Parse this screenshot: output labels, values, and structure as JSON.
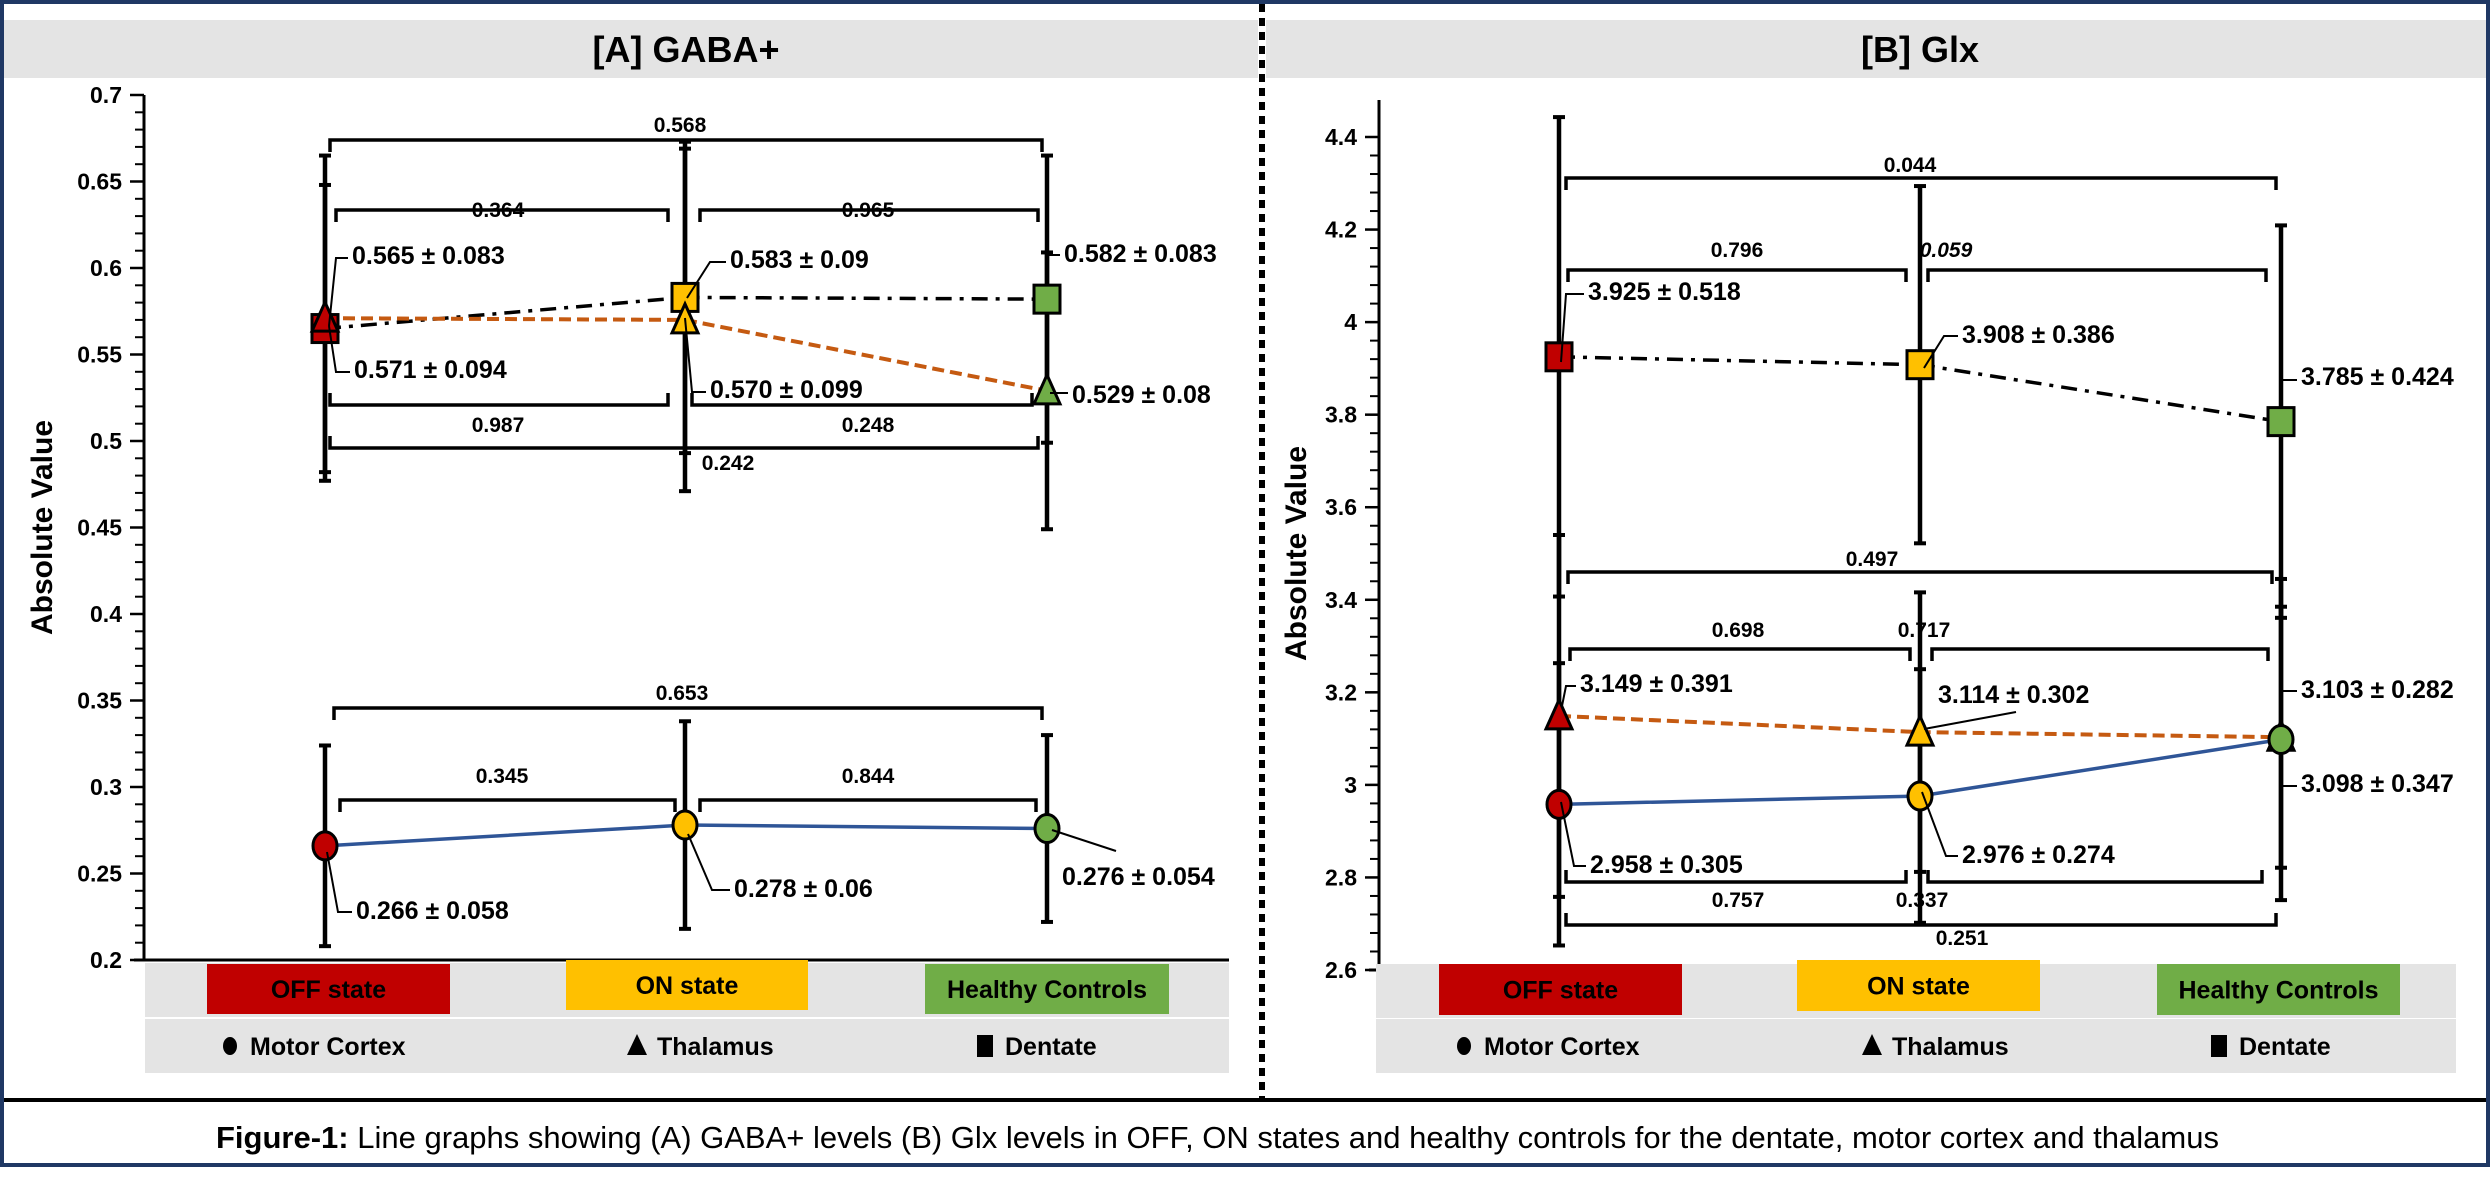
{
  "caption": {
    "label": "Figure-1:",
    "text": " Line graphs showing (A) GABA+ levels (B) Glx levels in OFF, ON states and healthy controls for the dentate, motor cortex and thalamus"
  },
  "colors": {
    "off": "#c00000",
    "on": "#ffc000",
    "healthy": "#70ad47",
    "motor_cortex_line": "#2f5597",
    "thalamus_line": "#c55a11",
    "dentate_line": "#000000",
    "header_band": "#e4e4e4",
    "significant_p": "#c00000",
    "frame": "#1f3864"
  },
  "legend": {
    "groups": [
      {
        "label": "OFF state",
        "color": "#c00000"
      },
      {
        "label": "ON state",
        "color": "#ffc000"
      },
      {
        "label": "Healthy Controls",
        "color": "#70ad47"
      }
    ],
    "regions": [
      {
        "label": "Motor Cortex",
        "marker": "circle-icon"
      },
      {
        "label": "Thalamus",
        "marker": "triangle-icon"
      },
      {
        "label": "Dentate",
        "marker": "square-icon"
      }
    ]
  },
  "chart_data": [
    {
      "type": "line",
      "title": "[A] GABA+",
      "xlabel": "",
      "ylabel": "Absolute Value",
      "ylim": [
        0.2,
        0.7
      ],
      "yticks": [
        "0.2",
        "0.25",
        "0.3",
        "0.35",
        "0.4",
        "0.45",
        "0.5",
        "0.55",
        "0.6",
        "0.65",
        "0.7"
      ],
      "ytick_values": [
        0.2,
        0.25,
        0.3,
        0.35,
        0.4,
        0.45,
        0.5,
        0.55,
        0.6,
        0.65,
        0.7
      ],
      "categories": [
        "OFF state",
        "ON state",
        "Healthy Controls"
      ],
      "series": [
        {
          "name": "Dentate",
          "marker": "square",
          "line": "dash-dot",
          "values": [
            0.565,
            0.583,
            0.582
          ],
          "sd": [
            0.083,
            0.09,
            0.083
          ],
          "labels": [
            "0.565 ± 0.083",
            "0.583 ± 0.09",
            "0.582 ± 0.083"
          ]
        },
        {
          "name": "Thalamus",
          "marker": "triangle",
          "line": "dashed",
          "values": [
            0.571,
            0.57,
            0.529
          ],
          "sd": [
            0.094,
            0.099,
            0.08
          ],
          "labels": [
            "0.571 ± 0.094",
            "0.570 ± 0.099",
            "0.529 ± 0.08"
          ]
        },
        {
          "name": "Motor Cortex",
          "marker": "circle",
          "line": "solid",
          "values": [
            0.266,
            0.278,
            0.276
          ],
          "sd": [
            0.058,
            0.06,
            0.054
          ],
          "labels": [
            "0.266 ± 0.058",
            "0.278 ± 0.06",
            "0.276 ± 0.054"
          ]
        }
      ],
      "p_values": [
        {
          "series": "Dentate",
          "pair": "OFF-HC",
          "value": "0.568",
          "style": "normal"
        },
        {
          "series": "Dentate",
          "pair": "OFF-ON",
          "value": "0.364",
          "style": "normal"
        },
        {
          "series": "Dentate",
          "pair": "ON-HC",
          "value": "0.965",
          "style": "normal"
        },
        {
          "series": "Thalamus",
          "pair": "OFF-ON",
          "value": "0.987",
          "style": "normal"
        },
        {
          "series": "Thalamus",
          "pair": "ON-HC",
          "value": "0.248",
          "style": "normal"
        },
        {
          "series": "Thalamus",
          "pair": "OFF-HC",
          "value": "0.242",
          "style": "normal"
        },
        {
          "series": "Motor Cortex",
          "pair": "OFF-HC",
          "value": "0.653",
          "style": "normal"
        },
        {
          "series": "Motor Cortex",
          "pair": "OFF-ON",
          "value": "0.345",
          "style": "normal"
        },
        {
          "series": "Motor Cortex",
          "pair": "ON-HC",
          "value": "0.844",
          "style": "normal"
        }
      ]
    },
    {
      "type": "line",
      "title": "[B] Glx",
      "xlabel": "",
      "ylabel": "Absolute Value",
      "ylim": [
        2.6,
        4.4
      ],
      "yticks": [
        "2.6",
        "2.8",
        "3",
        "3.2",
        "3.4",
        "3.6",
        "3.8",
        "4",
        "4.2",
        "4.4"
      ],
      "ytick_values": [
        2.6,
        2.8,
        3.0,
        3.2,
        3.4,
        3.6,
        3.8,
        4.0,
        4.2,
        4.4
      ],
      "categories": [
        "OFF state",
        "ON state",
        "Healthy Controls"
      ],
      "series": [
        {
          "name": "Dentate",
          "marker": "square",
          "line": "dash-dot",
          "values": [
            3.925,
            3.908,
            3.785
          ],
          "sd": [
            0.518,
            0.386,
            0.424
          ],
          "labels": [
            "3.925 ± 0.518",
            "3.908 ± 0.386",
            "3.785 ± 0.424"
          ]
        },
        {
          "name": "Thalamus",
          "marker": "triangle",
          "line": "dashed",
          "values": [
            3.149,
            3.114,
            3.103
          ],
          "sd": [
            0.391,
            0.302,
            0.282
          ],
          "labels": [
            "3.149 ± 0.391",
            "3.114 ± 0.302",
            "3.103 ± 0.282"
          ]
        },
        {
          "name": "Motor Cortex",
          "marker": "circle",
          "line": "solid",
          "values": [
            2.958,
            2.976,
            3.098
          ],
          "sd": [
            0.305,
            0.274,
            0.347
          ],
          "labels": [
            "2.958 ± 0.305",
            "2.976 ± 0.274",
            "3.098 ± 0.347"
          ]
        }
      ],
      "p_values": [
        {
          "series": "Dentate",
          "pair": "OFF-HC",
          "value": "0.044",
          "style": "significant"
        },
        {
          "series": "Dentate",
          "pair": "OFF-ON",
          "value": "0.796",
          "style": "normal"
        },
        {
          "series": "Dentate",
          "pair": "ON-HC",
          "value": "0.059",
          "style": "italic"
        },
        {
          "series": "Thalamus",
          "pair": "OFF-HC",
          "value": "0.497",
          "style": "normal"
        },
        {
          "series": "Thalamus",
          "pair": "OFF-ON",
          "value": "0.698",
          "style": "normal"
        },
        {
          "series": "Thalamus",
          "pair": "ON-HC",
          "value": "0.717",
          "style": "normal"
        },
        {
          "series": "Motor Cortex",
          "pair": "OFF-ON",
          "value": "0.757",
          "style": "normal"
        },
        {
          "series": "Motor Cortex",
          "pair": "ON-HC",
          "value": "0.337",
          "style": "normal"
        },
        {
          "series": "Motor Cortex",
          "pair": "OFF-HC",
          "value": "0.251",
          "style": "normal"
        }
      ]
    }
  ]
}
